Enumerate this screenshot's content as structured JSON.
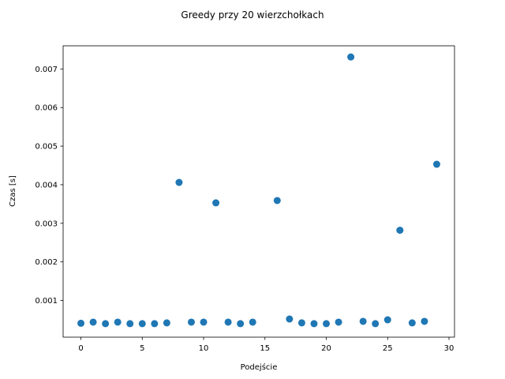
{
  "chart_data": {
    "type": "scatter",
    "title": "Greedy przy 20 wierzchołkach",
    "xlabel": "Podejście",
    "ylabel": "Czas [s]",
    "xlim": [
      -1.45,
      30.45
    ],
    "ylim": [
      5e-05,
      0.0076
    ],
    "xticks": [
      0,
      5,
      10,
      15,
      20,
      25,
      30
    ],
    "xtick_labels": [
      "0",
      "5",
      "10",
      "15",
      "20",
      "25",
      "30"
    ],
    "yticks": [
      0.001,
      0.002,
      0.003,
      0.004,
      0.005,
      0.006,
      0.007
    ],
    "ytick_labels": [
      "0.001",
      "0.002",
      "0.003",
      "0.004",
      "0.005",
      "0.006",
      "0.007"
    ],
    "grid": false,
    "marker_color": "#1f77b4",
    "x": [
      0,
      1,
      2,
      3,
      4,
      5,
      6,
      7,
      8,
      9,
      10,
      11,
      12,
      13,
      14,
      15,
      16,
      17,
      18,
      19,
      20,
      21,
      22,
      23,
      24,
      25,
      26,
      27,
      28,
      29
    ],
    "y": [
      0.00041,
      0.00044,
      0.0004,
      0.00044,
      0.0004,
      0.0004,
      0.0004,
      0.00042,
      0.00406,
      0.00044,
      0.00044,
      0.00353,
      0.00044,
      0.0004,
      0.00044,
      null,
      0.00359,
      0.00052,
      0.00042,
      0.0004,
      0.0004,
      0.00044,
      0.00731,
      0.00046,
      0.0004,
      0.0005,
      0.00282,
      0.00042,
      0.00046,
      0.00453
    ]
  }
}
